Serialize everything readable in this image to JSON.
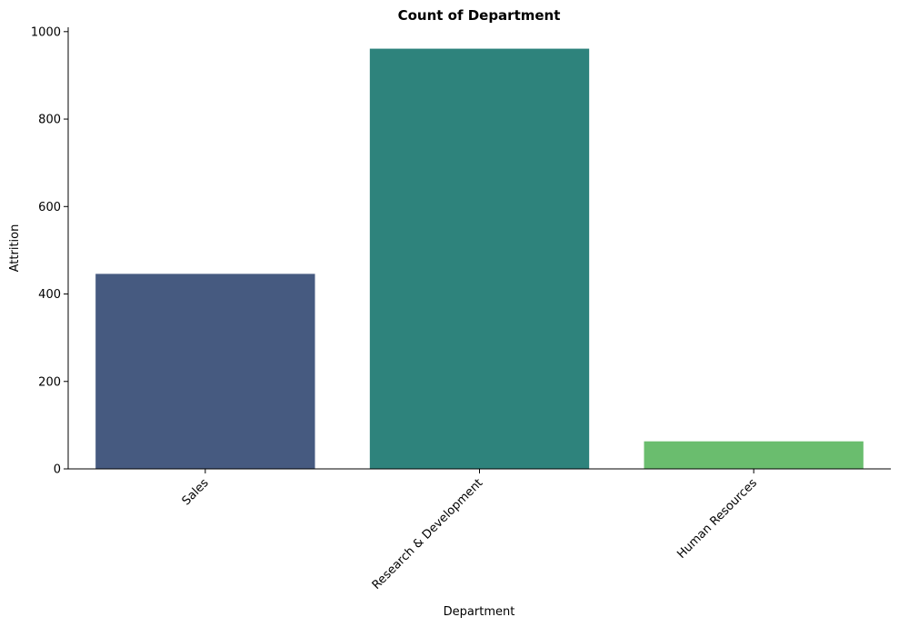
{
  "chart_data": {
    "type": "bar",
    "title": "Count of Department",
    "xlabel": "Department",
    "ylabel": "Attrition",
    "categories": [
      "Sales",
      "Research & Development",
      "Human Resources"
    ],
    "values": [
      446,
      961,
      63
    ],
    "colors": [
      "#465a80",
      "#2e837c",
      "#6abd6e"
    ],
    "ylim": [
      0,
      1010
    ],
    "yticks": [
      0,
      200,
      400,
      600,
      800,
      1000
    ],
    "ytick_labels": [
      "0",
      "200",
      "400",
      "600",
      "800",
      "1000"
    ],
    "grid": false,
    "xtick_rotation_deg": 45
  }
}
